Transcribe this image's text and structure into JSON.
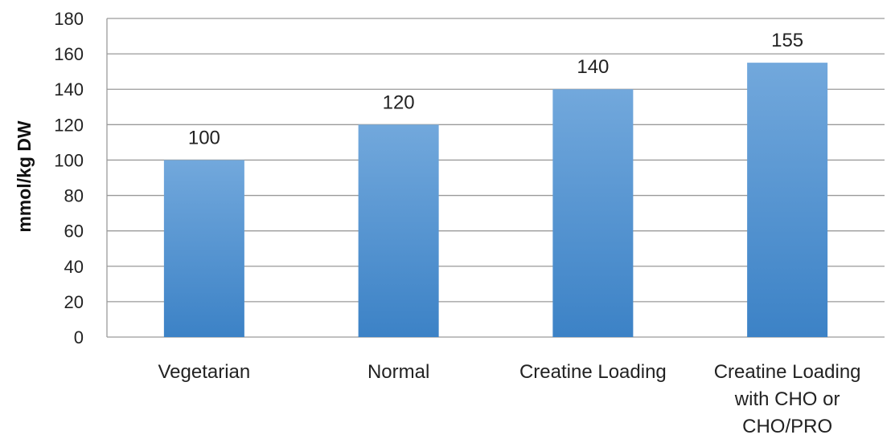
{
  "chart_data": {
    "type": "bar",
    "categories": [
      "Vegetarian",
      "Normal",
      "Creatine Loading",
      "Creatine Loading with CHO or CHO/PRO"
    ],
    "category_lines": [
      [
        "Vegetarian"
      ],
      [
        "Normal"
      ],
      [
        "Creatine Loading"
      ],
      [
        "Creatine Loading",
        "with CHO or",
        "CHO/PRO"
      ]
    ],
    "values": [
      100,
      120,
      140,
      155
    ],
    "data_labels": [
      "100",
      "120",
      "140",
      "155"
    ],
    "ylabel": "mmol/kg DW",
    "xlabel": "",
    "title": "",
    "ylim": [
      0,
      180
    ],
    "yticks": [
      0,
      20,
      40,
      60,
      80,
      100,
      120,
      140,
      160,
      180
    ],
    "grid": true,
    "legend": "none",
    "colors": {
      "bar_top": "#72a8dc",
      "bar_bottom": "#3c82c6",
      "grid": "#9a9a9a",
      "axis": "#9a9a9a"
    }
  }
}
